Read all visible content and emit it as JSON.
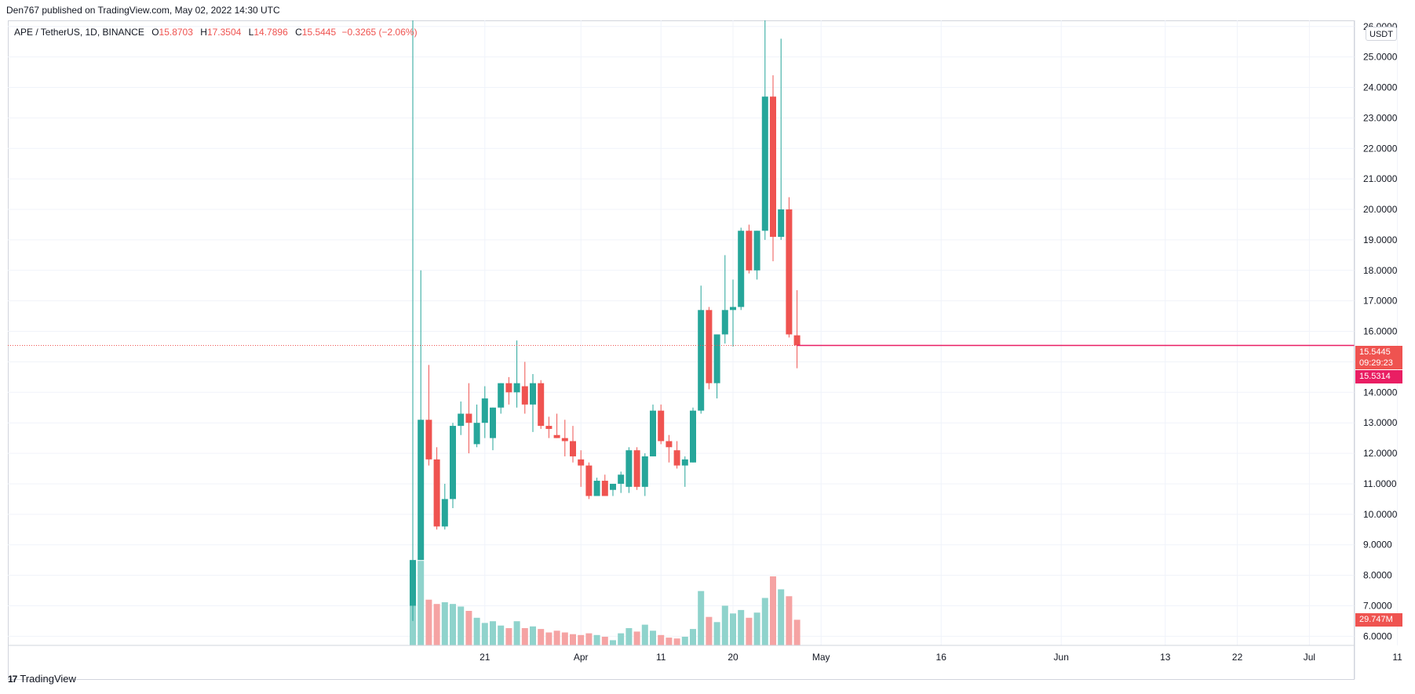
{
  "header": {
    "published_line": "Den767 published on TradingView.com, May 02, 2022 14:30 UTC"
  },
  "legend": {
    "symbol_line": "APE / TetherUS, 1D, BINANCE",
    "open_label": "O",
    "open": "15.8703",
    "high_label": "H",
    "high": "17.3504",
    "low_label": "L",
    "low": "14.7896",
    "close_label": "C",
    "close": "15.5445",
    "change": "−0.3265 (−2.06%)"
  },
  "price_axis": {
    "unit": "USDT",
    "ticks": [
      "6.0000",
      "7.0000",
      "8.0000",
      "9.0000",
      "10.0000",
      "11.0000",
      "12.0000",
      "13.0000",
      "14.0000",
      "15.0000",
      "16.0000",
      "17.0000",
      "18.0000",
      "19.0000",
      "20.0000",
      "21.0000",
      "22.0000",
      "23.0000",
      "24.0000",
      "25.0000",
      "26.0000"
    ]
  },
  "time_axis": {
    "ticks": [
      "21",
      "Apr",
      "11",
      "20",
      "May",
      "16",
      "Jun",
      "13",
      "22",
      "Jul",
      "11"
    ]
  },
  "tags": {
    "last_price": "15.5445",
    "countdown": "09:29:23",
    "bid_price": "15.5314",
    "volume": "29.747M"
  },
  "footer": {
    "brand": "TradingView",
    "logo_glyph": "17"
  },
  "colors": {
    "up": "#26a69a",
    "down": "#ef5350",
    "up_volume": "#8fd3cc",
    "down_volume": "#f5a3a3",
    "price_line": "#e91e63"
  },
  "chart_data": {
    "type": "candlestick",
    "symbol": "APE / TetherUS",
    "interval": "1D",
    "exchange": "BINANCE",
    "y_range": [
      5.7,
      26.2
    ],
    "volume_max": 100,
    "time_tick_days": [
      -1,
      11,
      21,
      30,
      41,
      56,
      71,
      84,
      93,
      102,
      113
    ],
    "candles": [
      {
        "d": -10,
        "o": 7.0,
        "h": 26.5,
        "l": 6.5,
        "c": 8.5,
        "v": 98
      },
      {
        "d": -9,
        "o": 8.5,
        "h": 18.0,
        "l": 8.5,
        "c": 13.1,
        "v": 98
      },
      {
        "d": -8,
        "o": 13.1,
        "h": 14.9,
        "l": 11.6,
        "c": 11.8,
        "v": 53
      },
      {
        "d": -7,
        "o": 11.8,
        "h": 12.2,
        "l": 9.5,
        "c": 9.6,
        "v": 48
      },
      {
        "d": -6,
        "o": 9.6,
        "h": 11.0,
        "l": 9.5,
        "c": 10.5,
        "v": 50
      },
      {
        "d": -5,
        "o": 10.5,
        "h": 13.0,
        "l": 10.2,
        "c": 12.9,
        "v": 48
      },
      {
        "d": -4,
        "o": 12.9,
        "h": 13.7,
        "l": 12.6,
        "c": 13.3,
        "v": 45
      },
      {
        "d": -3,
        "o": 13.3,
        "h": 14.3,
        "l": 12.0,
        "c": 13.0,
        "v": 40
      },
      {
        "d": -2,
        "o": 12.3,
        "h": 13.6,
        "l": 12.2,
        "c": 13.0,
        "v": 32
      },
      {
        "d": -1,
        "o": 13.0,
        "h": 14.2,
        "l": 12.5,
        "c": 13.8,
        "v": 26
      },
      {
        "d": 0,
        "o": 12.5,
        "h": 13.5,
        "l": 12.1,
        "c": 13.5,
        "v": 28
      },
      {
        "d": 1,
        "o": 13.5,
        "h": 14.3,
        "l": 13.3,
        "c": 14.3,
        "v": 23
      },
      {
        "d": 2,
        "o": 14.3,
        "h": 14.5,
        "l": 13.6,
        "c": 14.0,
        "v": 20
      },
      {
        "d": 3,
        "o": 14.0,
        "h": 15.7,
        "l": 13.5,
        "c": 14.3,
        "v": 28
      },
      {
        "d": 4,
        "o": 14.2,
        "h": 15.0,
        "l": 13.3,
        "c": 13.6,
        "v": 20
      },
      {
        "d": 5,
        "o": 13.6,
        "h": 14.6,
        "l": 12.7,
        "c": 14.3,
        "v": 22
      },
      {
        "d": 6,
        "o": 14.3,
        "h": 14.4,
        "l": 12.8,
        "c": 12.9,
        "v": 19
      },
      {
        "d": 7,
        "o": 12.9,
        "h": 13.2,
        "l": 12.5,
        "c": 12.8,
        "v": 15
      },
      {
        "d": 8,
        "o": 12.6,
        "h": 13.3,
        "l": 12.5,
        "c": 12.5,
        "v": 17
      },
      {
        "d": 9,
        "o": 12.5,
        "h": 13.1,
        "l": 11.9,
        "c": 12.4,
        "v": 15
      },
      {
        "d": 10,
        "o": 12.4,
        "h": 12.9,
        "l": 11.7,
        "c": 11.9,
        "v": 13
      },
      {
        "d": 11,
        "o": 11.8,
        "h": 12.1,
        "l": 10.9,
        "c": 11.6,
        "v": 12
      },
      {
        "d": 12,
        "o": 11.6,
        "h": 11.7,
        "l": 10.5,
        "c": 10.6,
        "v": 14
      },
      {
        "d": 13,
        "o": 10.6,
        "h": 11.2,
        "l": 10.6,
        "c": 11.1,
        "v": 12
      },
      {
        "d": 14,
        "o": 11.1,
        "h": 11.3,
        "l": 10.6,
        "c": 10.6,
        "v": 10
      },
      {
        "d": 15,
        "o": 10.8,
        "h": 11.0,
        "l": 10.6,
        "c": 11.0,
        "v": 6
      },
      {
        "d": 16,
        "o": 11.0,
        "h": 11.4,
        "l": 10.7,
        "c": 11.3,
        "v": 14
      },
      {
        "d": 17,
        "o": 10.9,
        "h": 12.2,
        "l": 10.7,
        "c": 12.1,
        "v": 20
      },
      {
        "d": 18,
        "o": 12.1,
        "h": 12.2,
        "l": 10.8,
        "c": 10.9,
        "v": 16
      },
      {
        "d": 19,
        "o": 10.9,
        "h": 12.0,
        "l": 10.6,
        "c": 11.9,
        "v": 24
      },
      {
        "d": 20,
        "o": 11.9,
        "h": 13.6,
        "l": 11.9,
        "c": 13.4,
        "v": 17
      },
      {
        "d": 21,
        "o": 13.4,
        "h": 13.6,
        "l": 12.3,
        "c": 12.4,
        "v": 12
      },
      {
        "d": 22,
        "o": 12.4,
        "h": 12.6,
        "l": 11.7,
        "c": 12.2,
        "v": 9
      },
      {
        "d": 23,
        "o": 12.1,
        "h": 12.4,
        "l": 11.5,
        "c": 11.6,
        "v": 8
      },
      {
        "d": 24,
        "o": 11.6,
        "h": 11.9,
        "l": 10.9,
        "c": 11.8,
        "v": 10
      },
      {
        "d": 25,
        "o": 11.7,
        "h": 13.5,
        "l": 11.7,
        "c": 13.4,
        "v": 19
      },
      {
        "d": 26,
        "o": 13.4,
        "h": 17.5,
        "l": 13.3,
        "c": 16.7,
        "v": 63
      },
      {
        "d": 27,
        "o": 16.7,
        "h": 16.8,
        "l": 14.1,
        "c": 14.3,
        "v": 33
      },
      {
        "d": 28,
        "o": 14.3,
        "h": 15.9,
        "l": 13.8,
        "c": 15.9,
        "v": 27
      },
      {
        "d": 29,
        "o": 15.9,
        "h": 18.5,
        "l": 15.6,
        "c": 16.7,
        "v": 46
      },
      {
        "d": 30,
        "o": 16.7,
        "h": 17.7,
        "l": 15.5,
        "c": 16.8,
        "v": 37
      },
      {
        "d": 31,
        "o": 16.8,
        "h": 19.4,
        "l": 16.7,
        "c": 19.3,
        "v": 41
      },
      {
        "d": 32,
        "o": 19.3,
        "h": 19.5,
        "l": 17.9,
        "c": 18.0,
        "v": 32
      },
      {
        "d": 33,
        "o": 18.0,
        "h": 19.3,
        "l": 17.7,
        "c": 19.3,
        "v": 38
      },
      {
        "d": 34,
        "o": 19.3,
        "h": 27.0,
        "l": 19.0,
        "c": 23.7,
        "v": 55
      },
      {
        "d": 35,
        "o": 23.7,
        "h": 24.4,
        "l": 18.3,
        "c": 19.1,
        "v": 80
      },
      {
        "d": 36,
        "o": 19.1,
        "h": 25.6,
        "l": 19.0,
        "c": 20.0,
        "v": 65
      },
      {
        "d": 37,
        "o": 20.0,
        "h": 20.4,
        "l": 15.8,
        "c": 15.9,
        "v": 57
      },
      {
        "d": 38,
        "o": 15.87,
        "h": 17.35,
        "l": 14.79,
        "c": 15.54,
        "v": 29.7
      }
    ]
  }
}
